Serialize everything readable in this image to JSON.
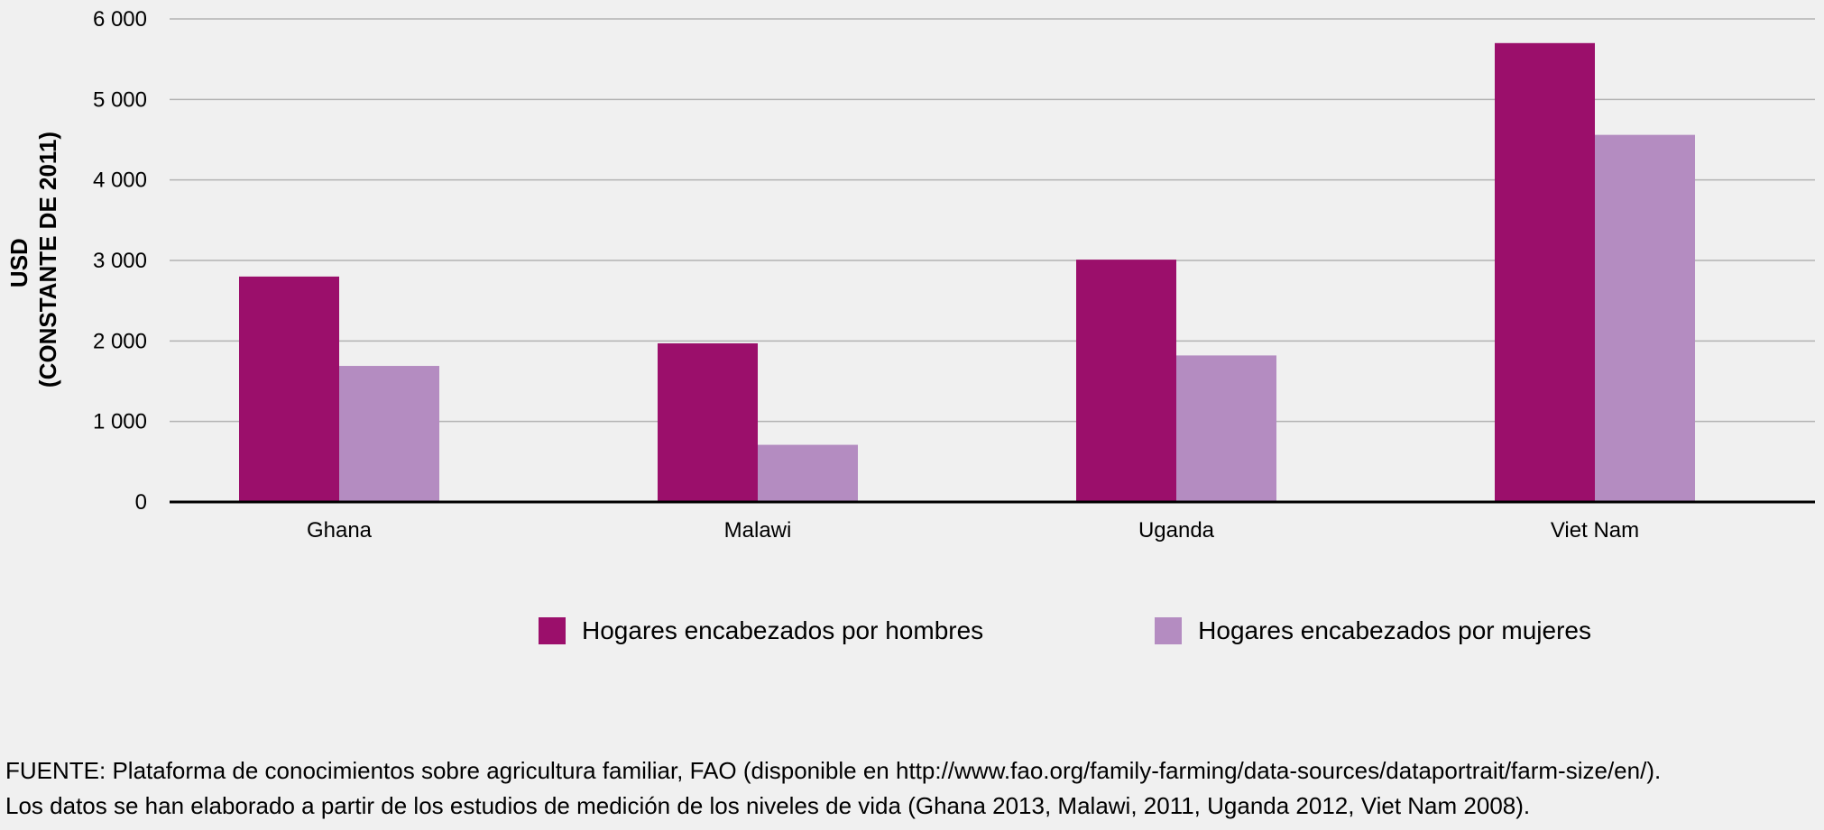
{
  "chart_data": {
    "type": "bar",
    "categories": [
      "Ghana",
      "Malawi",
      "Uganda",
      "Viet Nam"
    ],
    "series": [
      {
        "name": "Hogares encabezados por hombres",
        "values": [
          2800,
          1970,
          3010,
          5700
        ],
        "color": "#9b0f6b"
      },
      {
        "name": "Hogares encabezados por mujeres",
        "values": [
          1690,
          710,
          1820,
          4560
        ],
        "color": "#b48cc1"
      }
    ],
    "ylabel_line1": "USD",
    "ylabel_line2": "(CONSTANTE DE 2011)",
    "ylim": [
      0,
      6000
    ],
    "yticks": [
      0,
      1000,
      2000,
      3000,
      4000,
      5000,
      6000
    ],
    "ytick_labels": [
      "0",
      "1 000",
      "2 000",
      "3 000",
      "4 000",
      "5 000",
      "6 000"
    ],
    "grid": true,
    "legend_position": "bottom"
  },
  "source": {
    "line1": "FUENTE: Plataforma de conocimientos sobre agricultura familiar, FAO (disponible en http://www.fao.org/family-farming/data-sources/dataportrait/farm-size/en/).",
    "line2": "Los datos se han elaborado a partir de los estudios de medición de los niveles de vida (Ghana 2013, Malawi, 2011, Uganda 2012, Viet Nam 2008)."
  }
}
